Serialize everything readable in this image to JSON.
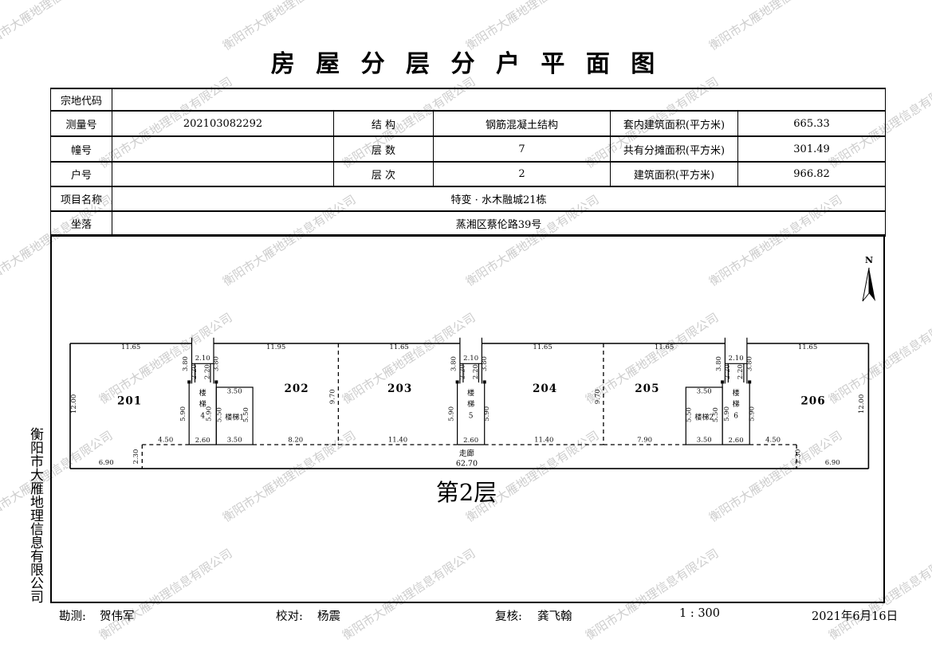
{
  "title": "房 屋 分 层 分 户 平 面 图",
  "watermark": "衡阳市大雁地理信息有限公司",
  "side_company": "衡阳市大雁地理信息有限公司",
  "table": {
    "parcel_code_label": "宗地代码",
    "parcel_code_value": "",
    "survey_no_label": "测量号",
    "survey_no_value": "202103082292",
    "structure_label": "结  构",
    "structure_value": "钢筋混凝土结构",
    "inner_area_label": "套内建筑面积(平方米)",
    "inner_area_value": "665.33",
    "building_no_label": "幢号",
    "building_no_value": "",
    "floors_label": "层  数",
    "floors_value": "7",
    "shared_area_label": "共有分摊面积(平方米)",
    "shared_area_value": "301.49",
    "house_no_label": "户号",
    "house_no_value": "",
    "level_label": "层  次",
    "level_value": "2",
    "total_area_label": "建筑面积(平方米)",
    "total_area_value": "966.82",
    "project_label": "项目名称",
    "project_value": "特变 · 水木融城21栋",
    "location_label": "坐落",
    "location_value": "蒸湘区蔡伦路39号"
  },
  "plan": {
    "floor_label": "第2层",
    "north_label": "N",
    "corridor": {
      "name": "走廊",
      "length": "62.70",
      "x": 38.0,
      "name_y": 10.78,
      "len_y": 11.72
    },
    "units": [
      [
        "201",
        5.7,
        5.85
      ],
      [
        "202",
        21.7,
        4.65
      ],
      [
        "203",
        31.6,
        4.65
      ],
      [
        "204",
        45.5,
        4.65
      ],
      [
        "205",
        55.3,
        4.65
      ],
      [
        "206",
        71.2,
        5.85
      ]
    ],
    "stairs": [
      [
        "楼梯4",
        12.7,
        4.95,
        1
      ],
      [
        "楼梯1",
        15.75,
        7.3,
        0
      ],
      [
        "楼梯5",
        38.4,
        4.95,
        1
      ],
      [
        "楼梯2",
        60.75,
        7.3,
        0
      ],
      [
        "楼梯6",
        63.8,
        4.95,
        1
      ]
    ],
    "dims": [
      [
        "11.65",
        5.82,
        0.55,
        0
      ],
      [
        "11.95",
        19.72,
        0.55,
        0
      ],
      [
        "11.65",
        31.52,
        0.55,
        0
      ],
      [
        "11.65",
        45.27,
        0.55,
        0
      ],
      [
        "11.65",
        56.92,
        0.55,
        0
      ],
      [
        "11.65",
        70.67,
        0.55,
        0
      ],
      [
        "2.10",
        12.7,
        1.62,
        0
      ],
      [
        "3.80",
        11.22,
        1.95,
        1
      ],
      [
        "3.80",
        14.18,
        1.95,
        1
      ],
      [
        "2.20",
        12.08,
        2.72,
        1
      ],
      [
        "2.20",
        13.32,
        2.72,
        1
      ],
      [
        "5.90",
        11.0,
        6.75,
        1
      ],
      [
        "5.90",
        13.48,
        6.75,
        1
      ],
      [
        "2.60",
        12.7,
        9.48,
        0
      ],
      [
        "2.10",
        38.4,
        1.62,
        0
      ],
      [
        "3.80",
        36.92,
        1.95,
        1
      ],
      [
        "3.80",
        39.88,
        1.95,
        1
      ],
      [
        "2.20",
        37.78,
        2.72,
        1
      ],
      [
        "2.20",
        39.02,
        2.72,
        1
      ],
      [
        "5.90",
        36.7,
        6.75,
        1
      ],
      [
        "5.90",
        40.1,
        6.75,
        1
      ],
      [
        "2.60",
        38.4,
        9.48,
        0
      ],
      [
        "2.10",
        63.8,
        1.62,
        0
      ],
      [
        "3.80",
        62.32,
        1.95,
        1
      ],
      [
        "3.80",
        65.28,
        1.95,
        1
      ],
      [
        "2.20",
        63.18,
        2.72,
        1
      ],
      [
        "2.20",
        64.42,
        2.72,
        1
      ],
      [
        "5.90",
        63.1,
        6.75,
        1
      ],
      [
        "5.90",
        65.5,
        6.75,
        1
      ],
      [
        "2.60",
        63.8,
        9.48,
        0
      ],
      [
        "3.50",
        15.75,
        4.78,
        0
      ],
      [
        "5.50",
        14.48,
        6.85,
        1
      ],
      [
        "5.50",
        17.05,
        6.85,
        1
      ],
      [
        "3.50",
        15.75,
        9.45,
        0
      ],
      [
        "3.50",
        60.75,
        4.78,
        0
      ],
      [
        "5.50",
        59.48,
        6.85,
        1
      ],
      [
        "5.50",
        62.05,
        6.85,
        1
      ],
      [
        "3.50",
        60.75,
        9.45,
        0
      ],
      [
        "12.00",
        0.55,
        5.8,
        1
      ],
      [
        "12.00",
        76.0,
        5.8,
        1
      ],
      [
        "9.70",
        25.32,
        5.1,
        1
      ],
      [
        "9.70",
        50.72,
        5.1,
        1
      ],
      [
        "4.50",
        9.15,
        9.42,
        0
      ],
      [
        "8.20",
        21.6,
        9.42,
        0
      ],
      [
        "11.40",
        31.4,
        9.42,
        0
      ],
      [
        "11.40",
        45.4,
        9.42,
        0
      ],
      [
        "7.90",
        55.05,
        9.42,
        0
      ],
      [
        "4.50",
        67.35,
        9.42,
        0
      ],
      [
        "2.30",
        6.5,
        10.85,
        1
      ],
      [
        "2.30",
        69.95,
        10.85,
        1
      ],
      [
        "6.90",
        3.45,
        11.62,
        0
      ],
      [
        "6.90",
        73.05,
        11.62,
        0
      ]
    ]
  },
  "footer": {
    "survey_label": "勘测:",
    "survey_value": "贺伟军",
    "check_label": "校对:",
    "check_value": "杨震",
    "review_label": "复核:",
    "review_value": "龚飞翰",
    "scale": "1 : 300",
    "date": "2021年6月16日"
  }
}
